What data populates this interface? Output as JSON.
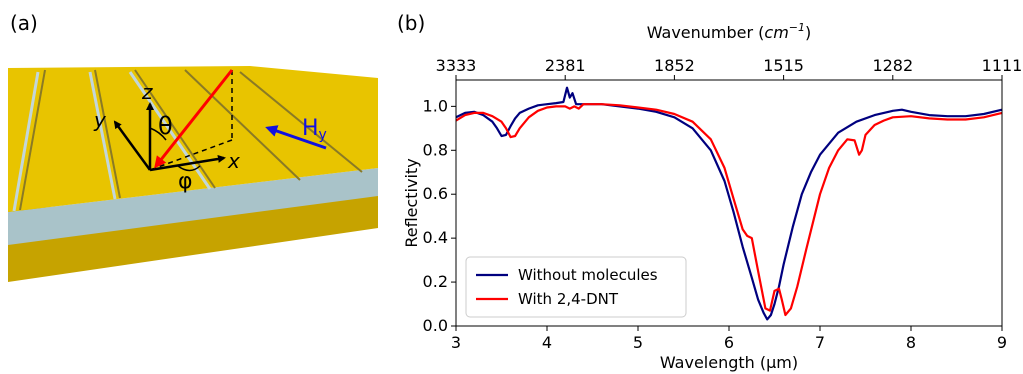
{
  "panel_a": {
    "label": "(a)",
    "axis_z": "z",
    "axis_y": "y",
    "axis_x": "x",
    "theta": "θ",
    "phi": "φ",
    "field_main": "H",
    "field_sub": "y",
    "colors": {
      "gold": "#e8c400",
      "substrate": "#a9c3c9",
      "incident": "#ff0000",
      "field": "#1010e0"
    }
  },
  "panel_b": {
    "label": "(b)"
  },
  "chart_data": {
    "type": "line",
    "xlabel": "Wavelength (μm)",
    "ylabel": "Reflectivity",
    "top_xlabel": "Wavenumber (cm⁻¹)",
    "top_xlabel_main": "Wavenumber (",
    "top_xlabel_unit": "cm",
    "top_xlabel_exp": "−1",
    "top_xlabel_close": ")",
    "xlim": [
      3,
      9
    ],
    "ylim": [
      0,
      1.12
    ],
    "xticks": [
      "3",
      "4",
      "5",
      "6",
      "7",
      "8",
      "9"
    ],
    "yticks": [
      "0.0",
      "0.2",
      "0.4",
      "0.6",
      "0.8",
      "1.0"
    ],
    "top_ticks": [
      {
        "wavelength": 3.0,
        "label": "3333"
      },
      {
        "wavelength": 4.2,
        "label": "2381"
      },
      {
        "wavelength": 5.4,
        "label": "1852"
      },
      {
        "wavelength": 6.6,
        "label": "1515"
      },
      {
        "wavelength": 7.8,
        "label": "1282"
      },
      {
        "wavelength": 9.0,
        "label": "1111"
      }
    ],
    "legend_position": "lower-left",
    "series": [
      {
        "name": "Without molecules",
        "color": "#00007f",
        "x": [
          3.0,
          3.1,
          3.2,
          3.3,
          3.4,
          3.45,
          3.5,
          3.55,
          3.6,
          3.65,
          3.7,
          3.8,
          3.9,
          4.0,
          4.1,
          4.18,
          4.22,
          4.25,
          4.28,
          4.32,
          4.4,
          4.6,
          4.8,
          5.0,
          5.2,
          5.4,
          5.6,
          5.8,
          5.95,
          6.05,
          6.15,
          6.25,
          6.32,
          6.38,
          6.42,
          6.46,
          6.5,
          6.55,
          6.6,
          6.7,
          6.8,
          6.9,
          7.0,
          7.2,
          7.4,
          7.6,
          7.8,
          7.9,
          8.0,
          8.2,
          8.4,
          8.6,
          8.8,
          9.0
        ],
        "y": [
          0.95,
          0.97,
          0.975,
          0.96,
          0.93,
          0.9,
          0.865,
          0.87,
          0.91,
          0.945,
          0.97,
          0.99,
          1.005,
          1.01,
          1.015,
          1.02,
          1.085,
          1.04,
          1.06,
          1.01,
          1.01,
          1.01,
          1.0,
          0.99,
          0.975,
          0.95,
          0.9,
          0.8,
          0.66,
          0.52,
          0.36,
          0.22,
          0.12,
          0.06,
          0.03,
          0.05,
          0.1,
          0.18,
          0.28,
          0.45,
          0.6,
          0.7,
          0.78,
          0.88,
          0.93,
          0.96,
          0.98,
          0.985,
          0.975,
          0.96,
          0.955,
          0.955,
          0.965,
          0.985
        ]
      },
      {
        "name": "With 2,4-DNT",
        "color": "#ff0000",
        "x": [
          3.0,
          3.1,
          3.2,
          3.3,
          3.4,
          3.5,
          3.55,
          3.6,
          3.65,
          3.7,
          3.8,
          3.9,
          4.0,
          4.1,
          4.2,
          4.25,
          4.3,
          4.35,
          4.4,
          4.6,
          4.8,
          5.0,
          5.2,
          5.4,
          5.6,
          5.8,
          5.95,
          6.05,
          6.15,
          6.2,
          6.25,
          6.32,
          6.4,
          6.45,
          6.5,
          6.55,
          6.58,
          6.62,
          6.68,
          6.75,
          6.85,
          7.0,
          7.1,
          7.2,
          7.3,
          7.38,
          7.43,
          7.46,
          7.5,
          7.6,
          7.7,
          7.8,
          8.0,
          8.2,
          8.4,
          8.6,
          8.8,
          9.0
        ],
        "y": [
          0.935,
          0.96,
          0.97,
          0.97,
          0.955,
          0.93,
          0.9,
          0.86,
          0.865,
          0.9,
          0.95,
          0.98,
          0.995,
          1.0,
          1.0,
          0.99,
          1.0,
          0.99,
          1.01,
          1.01,
          1.005,
          0.995,
          0.985,
          0.965,
          0.93,
          0.85,
          0.72,
          0.58,
          0.44,
          0.41,
          0.4,
          0.25,
          0.08,
          0.07,
          0.16,
          0.17,
          0.12,
          0.05,
          0.08,
          0.18,
          0.35,
          0.6,
          0.72,
          0.8,
          0.85,
          0.845,
          0.78,
          0.8,
          0.87,
          0.915,
          0.935,
          0.95,
          0.955,
          0.945,
          0.94,
          0.94,
          0.95,
          0.97
        ]
      }
    ]
  }
}
